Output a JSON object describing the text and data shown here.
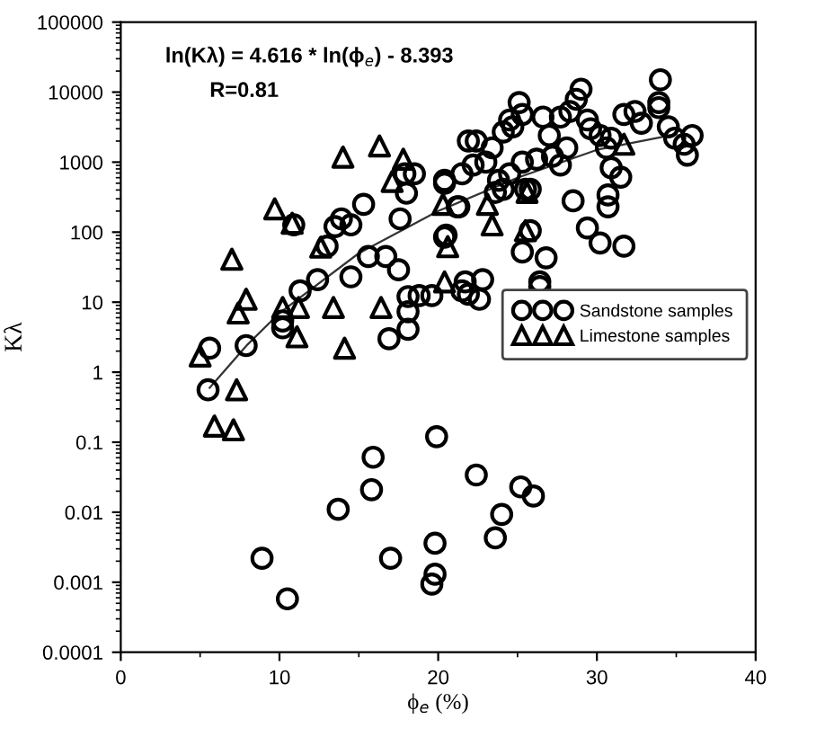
{
  "chart_data": {
    "type": "scatter",
    "xlabel": "ϕ$_{e}$ (%)",
    "ylabel": "Kλ",
    "log": "y",
    "xlim": [
      0,
      40
    ],
    "xticks": [
      0,
      10,
      20,
      30,
      40
    ],
    "ylim": [
      0.0001,
      100000
    ],
    "yticks": [
      0.0001,
      0.001,
      0.01,
      0.1,
      1,
      10,
      100,
      1000,
      10000,
      100000
    ],
    "grid": false,
    "legend": "right",
    "annotations": [
      "ln(Kλ) = 4.616 * ln(ϕ$_{e}$) - 8.393",
      "R=0.81"
    ],
    "series": [
      {
        "name": "Sandstone samples",
        "color": "#000000",
        "marker": "circle",
        "x": [
          5.5,
          5.6,
          7.9,
          10.2,
          16.9,
          18.1,
          19.9,
          15.9,
          15.8,
          13.7,
          8.9,
          17.0,
          19.8,
          19.8,
          19.6,
          10.5,
          22.4,
          25.2,
          26.0,
          24.0,
          23.6,
          17.9,
          18.5,
          18.0,
          20.4,
          21.2,
          15.3,
          13.9,
          13.5,
          14.5,
          10.9,
          17.6,
          13.0,
          20.5,
          15.6,
          16.7,
          17.5,
          12.4,
          14.5,
          11.3,
          18.1,
          18.8,
          19.6,
          21.5,
          10.2,
          18.1,
          21.9,
          34.0,
          33.9,
          33.9,
          29.0,
          28.7,
          25.1,
          25.3,
          24.5,
          26.6,
          27.7,
          28.3,
          29.4,
          31.7,
          32.4,
          32.8,
          34.5,
          36.0,
          35.5,
          35.7,
          34.9,
          22.4,
          23.4,
          24.1,
          24.7,
          23.0,
          22.2,
          21.5,
          23.8,
          24.5,
          24.1,
          25.3,
          26.2,
          27.2,
          27.7,
          28.1,
          27.0,
          30.2,
          30.6,
          30.9,
          29.6,
          30.9,
          31.5,
          30.7,
          30.7,
          28.5,
          29.4,
          30.2,
          31.7,
          25.8,
          25.3,
          26.8,
          26.4,
          26.4,
          22.8,
          21.7,
          21.9,
          22.6,
          20.4,
          20.4,
          21.3,
          23.6,
          25.5,
          25.8
        ],
        "values": [
          0.56,
          2.2,
          2.4,
          4.3,
          3.0,
          4.1,
          0.12,
          0.061,
          0.021,
          0.011,
          0.0022,
          0.0022,
          0.0036,
          0.0013,
          0.00094,
          0.00058,
          0.034,
          0.023,
          0.017,
          0.0093,
          0.0043,
          680,
          680,
          360,
          550,
          230,
          250,
          155,
          120,
          127,
          127,
          155,
          63,
          91,
          45,
          45,
          29,
          21,
          23,
          14.5,
          12,
          12.4,
          12.4,
          14.5,
          5.4,
          7.3,
          2000,
          15000,
          7100,
          6000,
          11000,
          7900,
          7100,
          4800,
          4000,
          4400,
          4400,
          5300,
          4000,
          4800,
          5300,
          3600,
          3200,
          2400,
          1800,
          1260,
          2200,
          2000,
          1600,
          2700,
          3200,
          1000,
          910,
          680,
          550,
          680,
          410,
          1000,
          1100,
          1210,
          910,
          1600,
          2400,
          2400,
          1600,
          2200,
          3000,
          830,
          610,
          340,
          230,
          280,
          115,
          70,
          63,
          105,
          52,
          43,
          19.5,
          16.7,
          21,
          19.5,
          13,
          11,
          500,
          85,
          230,
          370,
          410,
          410
        ]
      },
      {
        "name": "Limestone samples",
        "color": "#000000",
        "marker": "triangle",
        "x": [
          5.0,
          7.3,
          5.9,
          7.1,
          11.1,
          14.1,
          7.4,
          10.2,
          11.2,
          13.4,
          16.4,
          16.3,
          14.0,
          17.8,
          17.1,
          9.7,
          10.8,
          12.6,
          20.6,
          7.0,
          20.3,
          7.9,
          20.4,
          23.1,
          23.4,
          25.5,
          25.6,
          31.7
        ],
        "values": [
          1.7,
          0.56,
          0.17,
          0.15,
          3.2,
          2.2,
          7.0,
          8.4,
          8.4,
          8.4,
          8.4,
          1700,
          1180,
          1100,
          530,
          215,
          134,
          61,
          62,
          41,
          250,
          11,
          19.5,
          250,
          127,
          105,
          370,
          1800
        ]
      },
      {
        "type": "line",
        "color": "#333333",
        "marker": "none",
        "x": [
          5.6,
          8,
          10,
          15,
          20,
          25,
          30,
          35
        ],
        "values": [
          0.6,
          2.5,
          7,
          50,
          200,
          600,
          1500,
          2500
        ]
      }
    ]
  }
}
